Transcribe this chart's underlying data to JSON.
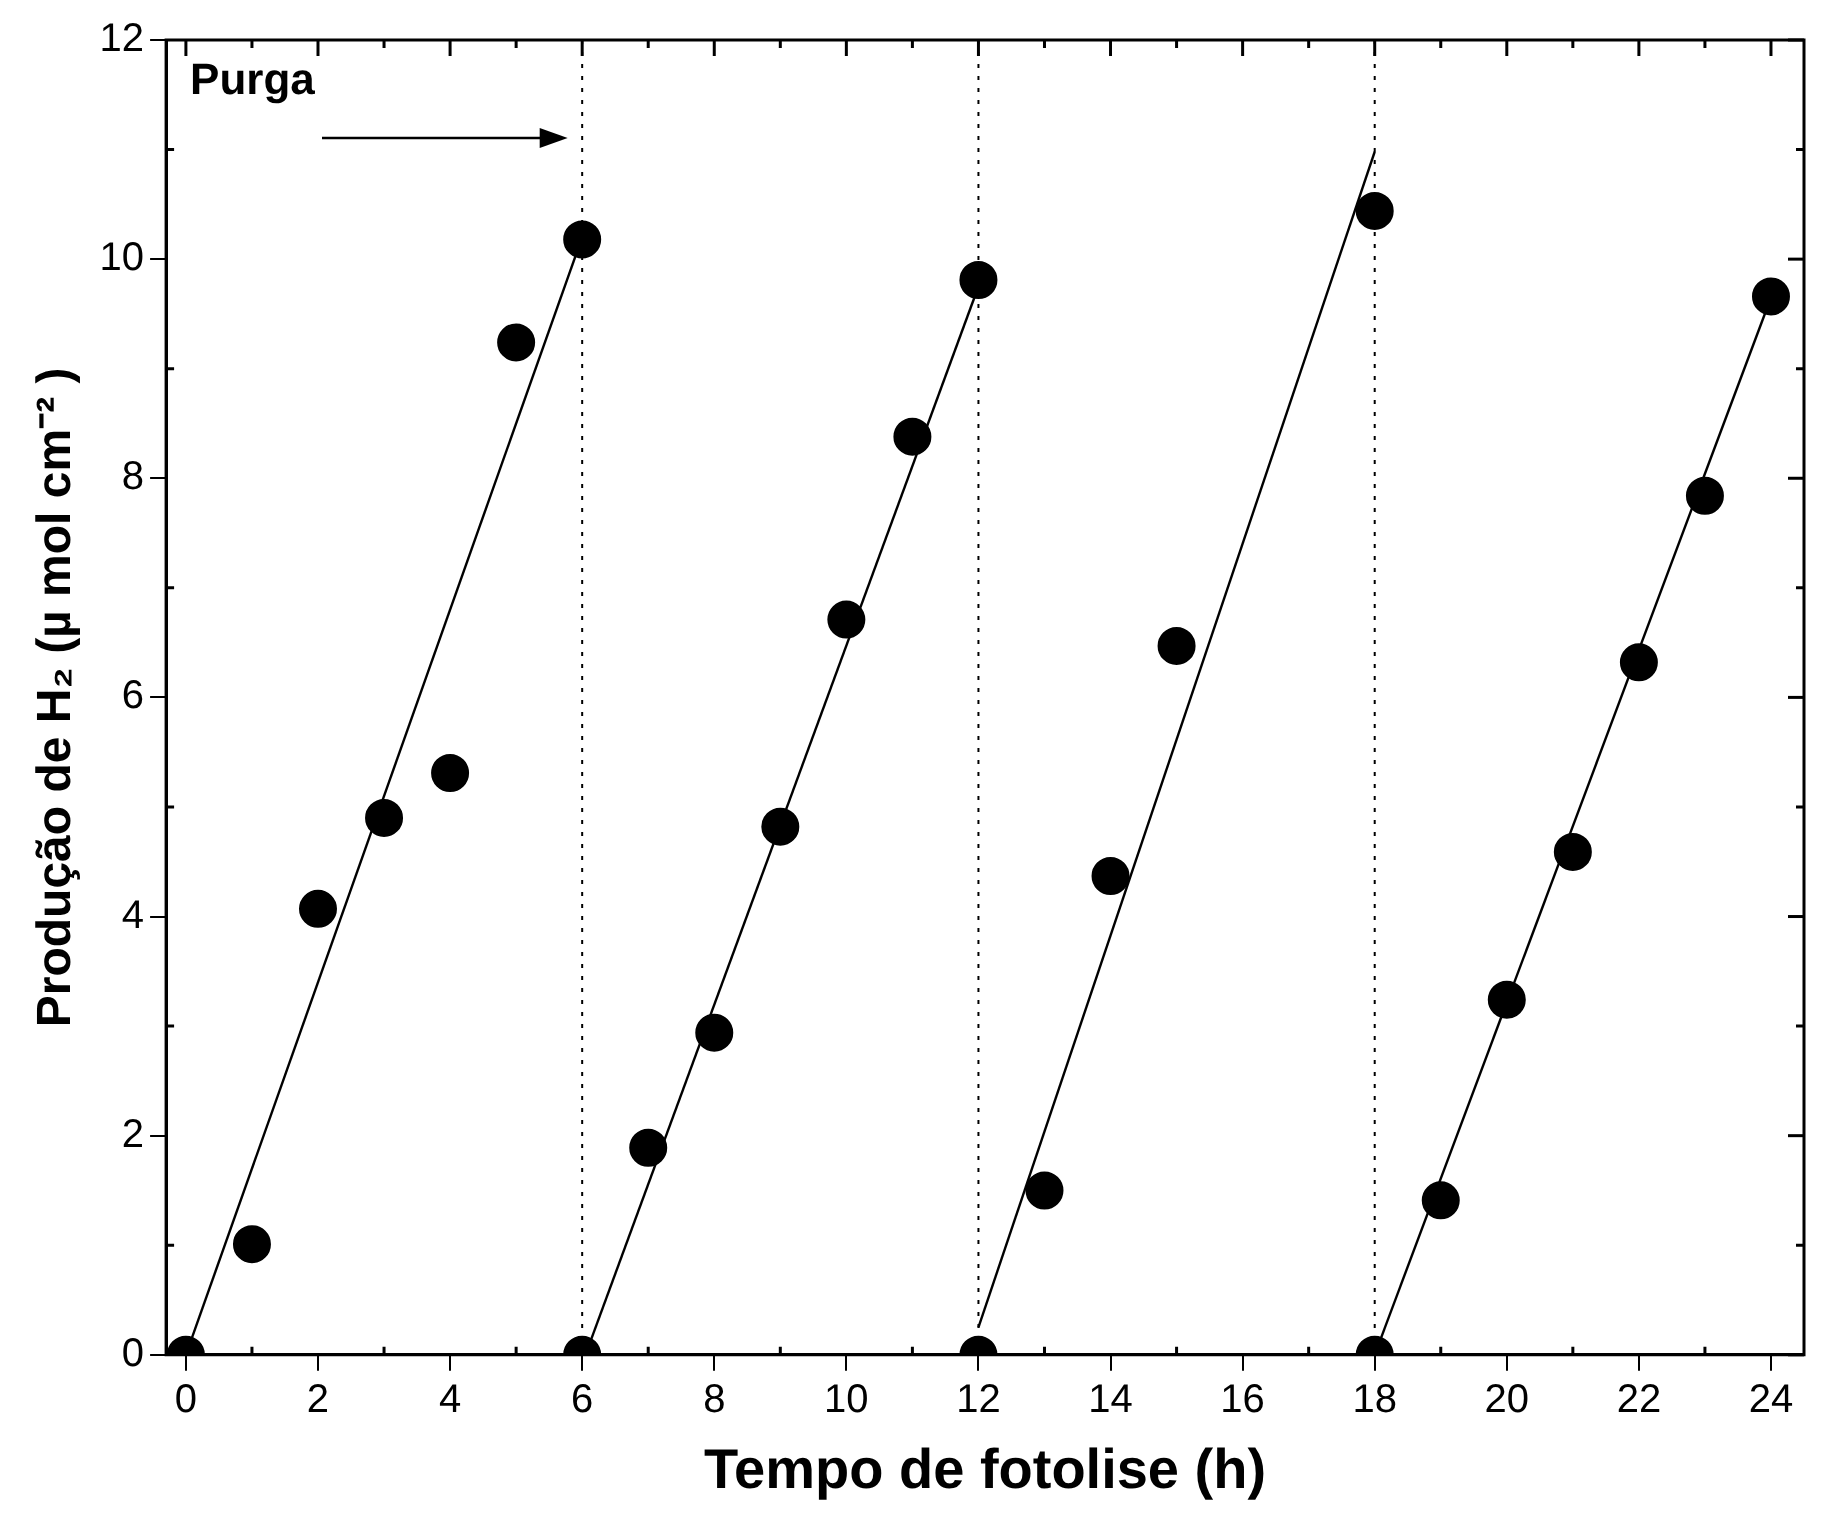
{
  "chart_data": {
    "type": "scatter",
    "xlabel": "Tempo de fotolise (h)",
    "ylabel": "Produção de H₂ (µ mol cm⁻² )",
    "annotations": [
      "Purga"
    ],
    "xlim": [
      -0.3,
      24.5
    ],
    "ylim": [
      0,
      12
    ],
    "xticks": [
      0,
      2,
      4,
      6,
      8,
      10,
      12,
      14,
      16,
      18,
      20,
      22,
      24
    ],
    "yticks": [
      0,
      2,
      4,
      6,
      8,
      10,
      12
    ],
    "grid": false,
    "legend": false,
    "marker": "circle",
    "series": [
      {
        "type": "scatter",
        "color": "#000000",
        "x": [
          0,
          1,
          2,
          3,
          4,
          5,
          6,
          6,
          7,
          8,
          9,
          10,
          11,
          12,
          12,
          13,
          14,
          15,
          18,
          18,
          19,
          20,
          21,
          22,
          23,
          24
        ],
        "values": [
          0,
          1.01,
          4.07,
          4.9,
          5.31,
          9.24,
          10.18,
          0,
          1.89,
          2.94,
          4.82,
          6.71,
          8.38,
          9.81,
          0,
          1.5,
          4.37,
          6.47,
          10.44,
          0,
          1.41,
          3.24,
          4.59,
          6.32,
          7.84,
          9.66
        ]
      },
      {
        "type": "line",
        "color": "#000000",
        "marker": "none",
        "x": [
          0,
          6
        ],
        "values": [
          0,
          10.2
        ]
      },
      {
        "type": "line",
        "color": "#000000",
        "marker": "none",
        "x": [
          6.05,
          12
        ],
        "values": [
          0,
          9.75
        ]
      },
      {
        "type": "line",
        "color": "#000000",
        "marker": "none",
        "x": [
          12,
          18
        ],
        "values": [
          0.25,
          10.98
        ]
      },
      {
        "type": "line",
        "color": "#000000",
        "marker": "none",
        "x": [
          18,
          24
        ],
        "values": [
          0,
          9.65
        ]
      }
    ],
    "ref_lines": [
      {
        "axis": "x",
        "value": 6,
        "line_style": "dotted"
      },
      {
        "axis": "x",
        "value": 12,
        "line_style": "dotted"
      },
      {
        "axis": "x",
        "value": 18,
        "line_style": "dotted"
      }
    ]
  }
}
